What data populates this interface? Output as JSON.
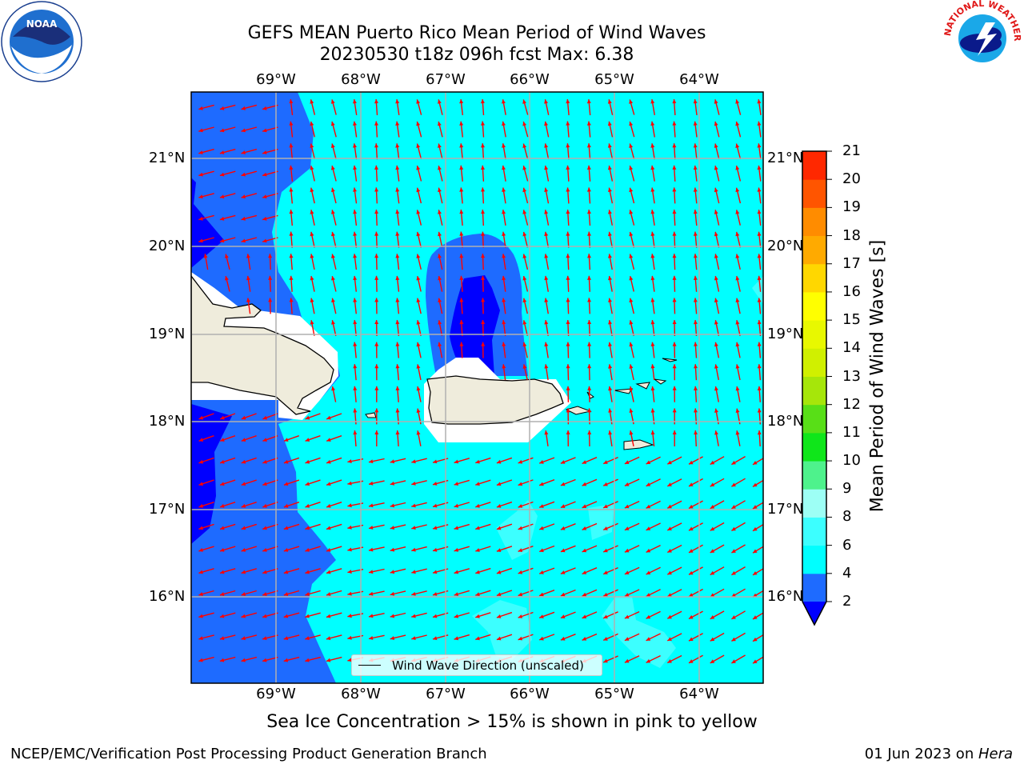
{
  "title": {
    "line1": "GEFS MEAN Puerto Rico Mean Period of Wind Waves",
    "line2": "20230530 t18z 096h fcst   Max: 6.38"
  },
  "axes": {
    "lon_labels": [
      "69°W",
      "68°W",
      "67°W",
      "66°W",
      "65°W",
      "64°W"
    ],
    "lat_labels": [
      "21°N",
      "20°N",
      "19°N",
      "18°N",
      "17°N",
      "16°N"
    ]
  },
  "colorbar": {
    "label": "Mean Period of Wind Waves [s]",
    "ticks": [
      "2",
      "4",
      "6",
      "8",
      "9",
      "10",
      "11",
      "12",
      "13",
      "14",
      "15",
      "16",
      "17",
      "18",
      "19",
      "20",
      "21"
    ],
    "colors": [
      "#1e6bff",
      "#00ffff",
      "#3cffff",
      "#9dfff5",
      "#4ef28c",
      "#0fe61a",
      "#58df17",
      "#a6e60a",
      "#d0f000",
      "#e8f800",
      "#ffff00",
      "#ffd700",
      "#ffaa00",
      "#ff8c00",
      "#ff5500",
      "#ff2800",
      "#ff0000"
    ],
    "under_color": "#0000ff"
  },
  "legend": {
    "label": "Wind Wave Direction (unscaled)"
  },
  "note": "Sea Ice Concentration > 15% is shown in pink to yellow",
  "footer": {
    "left": "NCEP/EMC/Verification Post Processing Product Generation Branch",
    "date": "01 Jun 2023 on ",
    "host": "Hera"
  },
  "logos": {
    "noaa_text": "NOAA",
    "nws_text": "NATIONAL WEATHER SERVICE"
  },
  "colors": {
    "level_2_4": "#1e6bff",
    "level_lt2": "#0000ff",
    "level_4_6": "#00ffff",
    "level_6_8": "#3cffff",
    "land": "#efecdc",
    "arrow": "#ff0000",
    "grid": "#b0b0b0"
  }
}
